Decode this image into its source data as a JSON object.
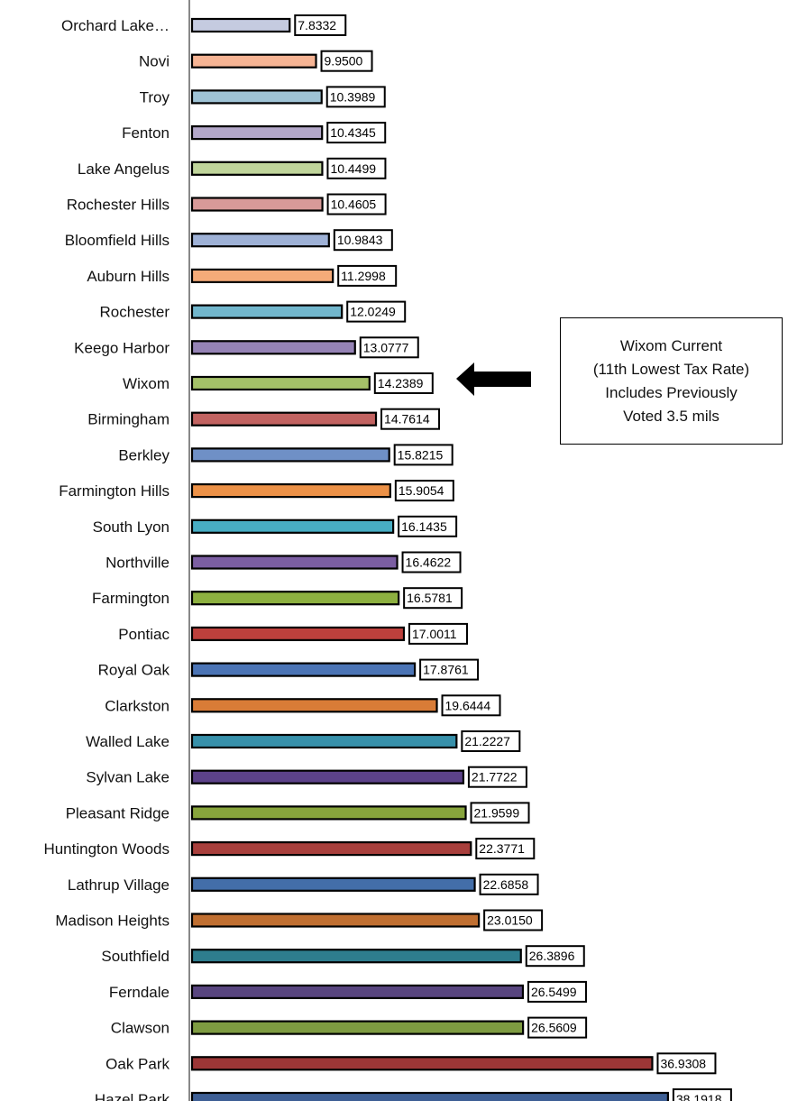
{
  "chart_data": {
    "type": "bar",
    "orientation": "horizontal",
    "categories": [
      "Orchard Lake…",
      "Novi",
      "Troy",
      "Fenton",
      "Lake Angelus",
      "Rochester Hills",
      "Bloomfield Hills",
      "Auburn Hills",
      "Rochester",
      "Keego Harbor",
      "Wixom",
      "Birmingham",
      "Berkley",
      "Farmington Hills",
      "South Lyon",
      "Northville",
      "Farmington",
      "Pontiac",
      "Royal Oak",
      "Clarkston",
      "Walled Lake",
      "Sylvan Lake",
      "Pleasant Ridge",
      "Huntington Woods",
      "Lathrup Village",
      "Madison Heights",
      "Southfield",
      "Ferndale",
      "Clawson",
      "Oak Park",
      "Hazel Park"
    ],
    "values": [
      7.8332,
      9.95,
      10.3989,
      10.4345,
      10.4499,
      10.4605,
      10.9843,
      11.2998,
      12.0249,
      13.0777,
      14.2389,
      14.7614,
      15.8215,
      15.9054,
      16.1435,
      16.4622,
      16.5781,
      17.0011,
      17.8761,
      19.6444,
      21.2227,
      21.7722,
      21.9599,
      22.3771,
      22.6858,
      23.015,
      26.3896,
      26.5499,
      26.5609,
      36.9308,
      38.1918
    ],
    "data_labels": [
      "7.8332",
      "9.9500",
      "10.3989",
      "10.4345",
      "10.4499",
      "10.4605",
      "10.9843",
      "11.2998",
      "12.0249",
      "13.0777",
      "14.2389",
      "14.7614",
      "15.8215",
      "15.9054",
      "16.1435",
      "16.4622",
      "16.5781",
      "17.0011",
      "17.8761",
      "19.6444",
      "21.2227",
      "21.7722",
      "21.9599",
      "22.3771",
      "22.6858",
      "23.0150",
      "26.3896",
      "26.5499",
      "26.5609",
      "36.9308",
      "38.1918"
    ],
    "colors": [
      "#c5cbe0",
      "#f6b494",
      "#9fc3d5",
      "#b3a7c9",
      "#c0d59b",
      "#d89a98",
      "#9eb1d6",
      "#f5ab79",
      "#71b6cc",
      "#9583b5",
      "#a4c168",
      "#c26361",
      "#6f90c6",
      "#ec9147",
      "#48adc3",
      "#7b5ea2",
      "#8db040",
      "#bd403c",
      "#4b74b5",
      "#d97c37",
      "#3790aa",
      "#5c4289",
      "#87a43c",
      "#a83f3c",
      "#436ea9",
      "#c06f31",
      "#2e7d8e",
      "#58457f",
      "#7e9b41",
      "#9c3636",
      "#3e5f95"
    ],
    "xlim": [
      0,
      38.2
    ],
    "grid": false,
    "legend": "none"
  },
  "callout": {
    "lines": [
      "Wixom Current",
      "(11th Lowest Tax Rate)",
      "Includes Previously",
      "Voted 3.5 mils"
    ]
  }
}
